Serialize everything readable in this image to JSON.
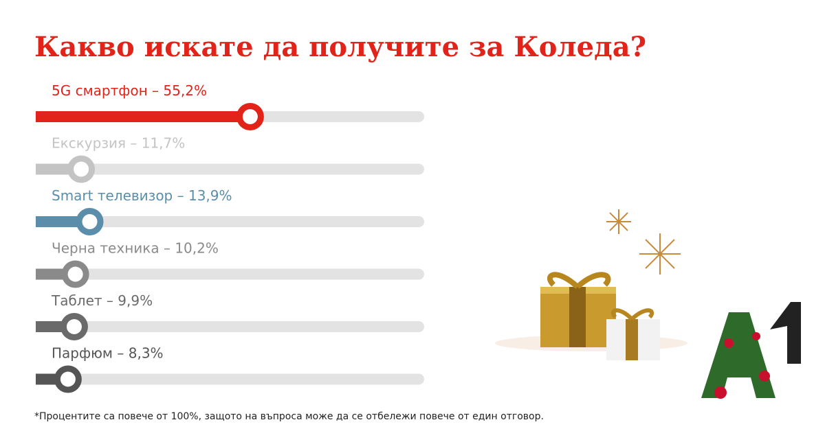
{
  "chart_data": {
    "type": "bar",
    "orientation": "horizontal",
    "title": "Какво искате да получите за Коледа?",
    "categories": [
      "5G смартфон –",
      "Екскурзия –",
      "Smart телевизор –",
      "Черна техника –",
      "Таблет –",
      "Парфюм –"
    ],
    "values": [
      55.2,
      11.7,
      13.9,
      10.2,
      9.9,
      8.3
    ],
    "value_labels": [
      "55,2%",
      "11,7%",
      "13,9%",
      "10,2%",
      "9,9%",
      "8,3%"
    ],
    "colors": [
      "#e2231a",
      "#c4c4c4",
      "#5a8eab",
      "#8a8a8a",
      "#6a6a6a",
      "#555555"
    ],
    "xlim": [
      0,
      100
    ],
    "footnote": "*Процентите са повече от 100%, защото на въпроса  може да се отбележи повече от един отговор.",
    "logo": "A1"
  }
}
